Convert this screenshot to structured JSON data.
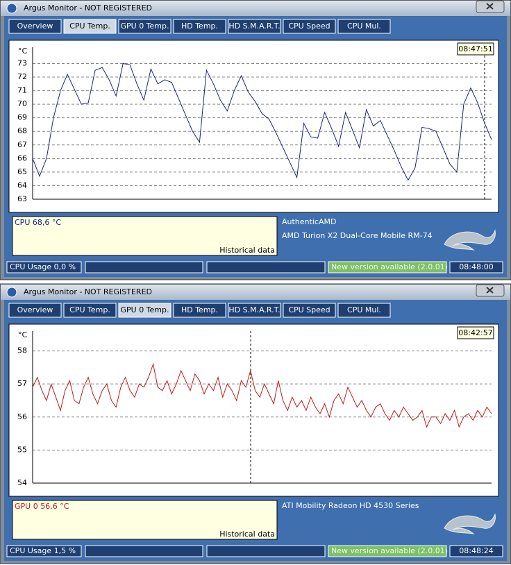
{
  "windows": [
    {
      "title": "Argus Monitor - NOT REGISTERED",
      "tabs": [
        "Overview",
        "CPU Temp.",
        "GPU 0 Temp.",
        "HD Temp.",
        "HD S.M.A.R.T.",
        "CPU Speed",
        "CPU Mul."
      ],
      "active_tab": 1,
      "time": "08:47:51",
      "reading": "CPU  68,6 °C",
      "historical": "Historical data",
      "device_lines": [
        "AuthenticAMD",
        "AMD Turion X2 Dual-Core Mobile RM-74"
      ],
      "status": {
        "cpu_usage": "CPU Usage 0,0 %",
        "update": "New version available (2.0.01)",
        "clock": "08:48:00"
      }
    },
    {
      "title": "Argus Monitor - NOT REGISTERED",
      "tabs": [
        "Overview",
        "CPU Temp.",
        "GPU 0 Temp.",
        "HD Temp.",
        "HD S.M.A.R.T.",
        "CPU Speed",
        "CPU Mul."
      ],
      "active_tab": 2,
      "time": "08:42:57",
      "reading": "GPU 0  56,6 °C",
      "historical": "Historical data",
      "device_lines": [
        "ATI Mobility Radeon HD 4530 Series"
      ],
      "status": {
        "cpu_usage": "CPU Usage 1,5 %",
        "update": "New version available (2.0.01)",
        "clock": "08:48:24"
      }
    }
  ],
  "chart_data": [
    {
      "type": "line",
      "y_label": "°C",
      "ylim": [
        63,
        74.2
      ],
      "yticks": [
        63,
        64,
        65,
        66,
        67,
        68,
        69,
        70,
        71,
        72,
        73
      ],
      "grid": true,
      "series": [
        {
          "color": "#1a237e",
          "values": [
            66.0,
            64.7,
            66.0,
            69.0,
            71.0,
            72.2,
            71.1,
            70.0,
            70.1,
            72.5,
            72.7,
            71.8,
            70.6,
            73.0,
            72.9,
            71.5,
            70.3,
            72.6,
            71.5,
            71.8,
            71.6,
            70.4,
            69.2,
            68.0,
            67.2,
            72.5,
            71.5,
            70.3,
            69.5,
            71.0,
            72.1,
            70.9,
            70.2,
            69.3,
            68.9,
            67.9,
            66.8,
            65.7,
            64.6,
            68.6,
            67.6,
            67.5,
            69.4,
            68.2,
            66.9,
            69.4,
            68.1,
            66.8,
            69.6,
            68.4,
            68.8,
            67.7,
            66.6,
            65.4,
            64.4,
            65.3,
            68.3,
            68.2,
            68.0,
            66.8,
            65.6,
            65.0,
            70.0,
            71.2,
            70.1,
            68.6,
            67.4
          ]
        }
      ]
    },
    {
      "type": "line",
      "y_label": "°C",
      "ylim": [
        54,
        58.6
      ],
      "yticks": [
        54,
        55,
        56,
        57,
        58
      ],
      "grid": true,
      "series": [
        {
          "color": "#c0191b",
          "values": [
            56.9,
            57.2,
            56.8,
            56.5,
            57.0,
            56.6,
            56.2,
            56.8,
            57.1,
            56.5,
            56.4,
            56.9,
            57.2,
            56.7,
            56.4,
            56.8,
            57.0,
            56.5,
            56.3,
            56.9,
            57.2,
            56.8,
            56.6,
            57.0,
            56.9,
            57.2,
            57.6,
            56.9,
            56.8,
            57.1,
            56.7,
            57.0,
            57.4,
            57.1,
            56.8,
            57.3,
            57.1,
            56.7,
            57.0,
            56.8,
            57.2,
            56.6,
            57.0,
            56.8,
            56.5,
            57.1,
            56.9,
            57.4,
            56.8,
            56.6,
            57.0,
            56.7,
            56.4,
            57.1,
            56.5,
            56.2,
            56.6,
            56.3,
            56.5,
            56.2,
            56.6,
            56.3,
            56.1,
            56.4,
            56.0,
            56.5,
            56.7,
            56.4,
            56.9,
            56.6,
            56.3,
            56.5,
            56.2,
            56.0,
            56.3,
            56.4,
            56.1,
            55.9,
            56.2,
            56.0,
            56.3,
            56.1,
            55.9,
            56.0,
            56.2,
            55.7,
            56.0,
            56.0,
            55.8,
            56.1,
            55.9,
            56.2,
            55.7,
            56.0,
            56.1,
            55.9,
            56.2,
            56.0,
            56.3,
            56.1
          ]
        }
      ]
    }
  ]
}
